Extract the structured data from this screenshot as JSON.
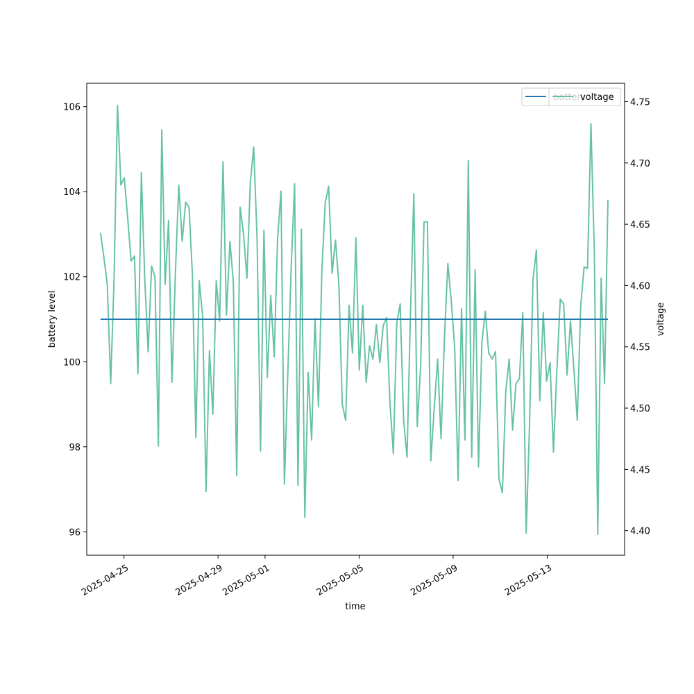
{
  "chart_data": {
    "type": "line",
    "title": "",
    "xlabel": "time",
    "ylabel": "battery level",
    "y2label": "voltage",
    "x_ticks": [
      "2025-04-25",
      "2025-04-29",
      "2025-05-01",
      "2025-05-05",
      "2025-05-09",
      "2025-05-13"
    ],
    "y_ticks": [
      96,
      98,
      100,
      102,
      104,
      106
    ],
    "y2_ticks": [
      "4.40",
      "4.45",
      "4.50",
      "4.55",
      "4.60",
      "4.65",
      "4.70",
      "4.75"
    ],
    "xlim": [
      "2025-04-23T10:00",
      "2025-05-16T07:00"
    ],
    "ylim": [
      95.45,
      106.55
    ],
    "y2lim": [
      4.38,
      4.765
    ],
    "grid": false,
    "legend_position": "upper-right, two overlapping legends",
    "series": [
      {
        "name": "battery",
        "axis": "left",
        "color": "#1f77b4",
        "x": [
          "2025-04-24T00:00",
          "2025-05-15T14:00"
        ],
        "values": [
          101,
          101
        ]
      },
      {
        "name": "voltage",
        "axis": "right",
        "color": "#66c2a5",
        "x_start": "2025-04-24T00:00",
        "x_end": "2025-05-15T14:00",
        "values": [
          4.643,
          4.623,
          4.601,
          4.52,
          4.606,
          4.747,
          4.682,
          4.688,
          4.655,
          4.62,
          4.624,
          4.528,
          4.692,
          4.605,
          4.546,
          4.616,
          4.607,
          4.469,
          4.727,
          4.601,
          4.653,
          4.521,
          4.61,
          4.682,
          4.636,
          4.668,
          4.664,
          4.608,
          4.476,
          4.604,
          4.575,
          4.432,
          4.547,
          4.495,
          4.604,
          4.571,
          4.701,
          4.576,
          4.636,
          4.603,
          4.445,
          4.664,
          4.642,
          4.606,
          4.684,
          4.713,
          4.637,
          4.465,
          4.645,
          4.525,
          4.592,
          4.542,
          4.638,
          4.677,
          4.438,
          4.528,
          4.615,
          4.683,
          4.437,
          4.646,
          4.411,
          4.529,
          4.474,
          4.573,
          4.501,
          4.612,
          4.668,
          4.681,
          4.61,
          4.637,
          4.601,
          4.503,
          4.49,
          4.584,
          4.545,
          4.639,
          4.531,
          4.584,
          4.521,
          4.551,
          4.54,
          4.568,
          4.537,
          4.567,
          4.574,
          4.504,
          4.463,
          4.569,
          4.585,
          4.491,
          4.46,
          4.576,
          4.675,
          4.485,
          4.534,
          4.652,
          4.652,
          4.457,
          4.5,
          4.54,
          4.475,
          4.557,
          4.618,
          4.587,
          4.549,
          4.441,
          4.581,
          4.474,
          4.702,
          4.46,
          4.613,
          4.452,
          4.554,
          4.579,
          4.545,
          4.54,
          4.546,
          4.442,
          4.431,
          4.514,
          4.54,
          4.482,
          4.52,
          4.524,
          4.578,
          4.398,
          4.488,
          4.605,
          4.629,
          4.506,
          4.578,
          4.522,
          4.537,
          4.464,
          4.531,
          4.589,
          4.585,
          4.527,
          4.571,
          4.532,
          4.49,
          4.583,
          4.615,
          4.614,
          4.732,
          4.627,
          4.397,
          4.606,
          4.52,
          4.67
        ]
      }
    ]
  }
}
